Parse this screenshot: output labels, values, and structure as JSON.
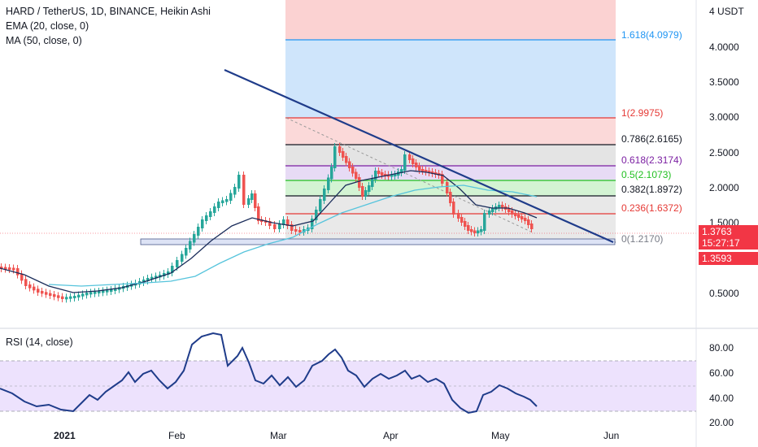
{
  "legend": {
    "title": "HARD / TetherUS, 1D, BINANCE, Heikin Ashi",
    "ema": "EMA (20, close, 0)",
    "ma": "MA (50, close, 0)",
    "rsi": "RSI (14, close)"
  },
  "price_axis": {
    "unit": "4 USDT",
    "ticks": [
      "4.0000",
      "3.5000",
      "3.0000",
      "2.5000",
      "2.0000",
      "1.5000",
      "0.5000"
    ]
  },
  "rsi_axis": {
    "ticks": [
      "80.00",
      "60.00",
      "40.00",
      "20.00"
    ]
  },
  "time_axis": {
    "labels": [
      "2021",
      "Feb",
      "Mar",
      "Apr",
      "May",
      "Jun"
    ]
  },
  "fib_levels": [
    {
      "label": "1.618(4.0979)",
      "color": "#2196f3"
    },
    {
      "label": "1(2.9975)",
      "color": "#e53935"
    },
    {
      "label": "0.786(2.6165)",
      "color": "#131722"
    },
    {
      "label": "0.618(2.3174)",
      "color": "#7b1fa2"
    },
    {
      "label": "0.5(2.1073)",
      "color": "#22c022"
    },
    {
      "label": "0.382(1.8972)",
      "color": "#131722"
    },
    {
      "label": "0.236(1.6372)",
      "color": "#e53935"
    },
    {
      "label": "0(1.2170)",
      "color": "#787b86"
    }
  ],
  "price_tags": {
    "current": "1.3763",
    "countdown": "15:27:17",
    "ma_value": "1.3593",
    "color": "#f23645"
  },
  "colors": {
    "up": "#26a69a",
    "down": "#ef5350",
    "ema": "#1a2c5a",
    "ma": "#56c4dc",
    "trendline": "#1f3c8a",
    "rsi_line": "#1f3c8a",
    "rsi_band": "#ede2fd"
  },
  "icons": {
    "trendline": "trendline-icon"
  }
}
